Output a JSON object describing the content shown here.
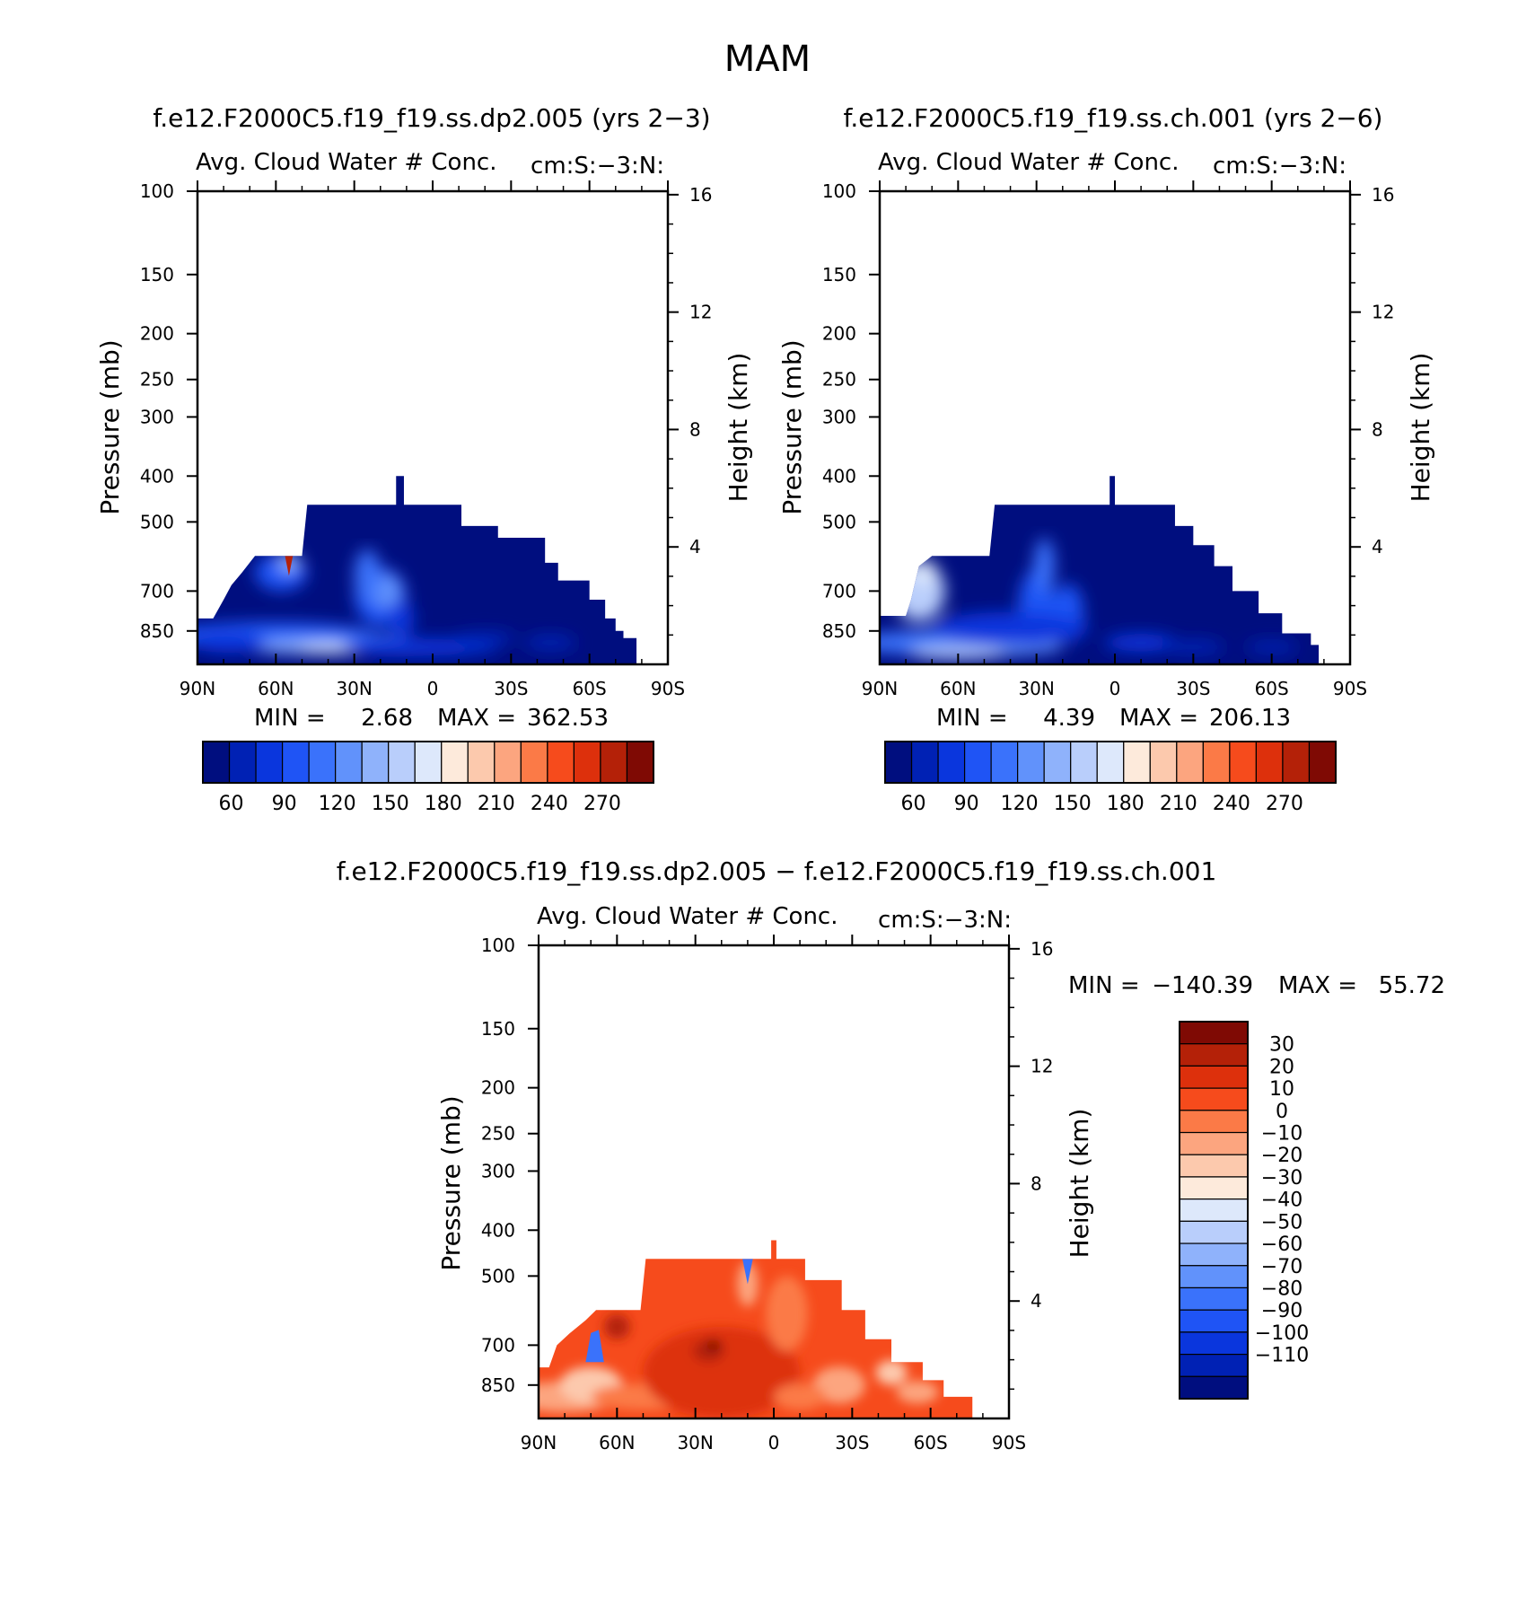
{
  "main_title": "MAM",
  "colors": {
    "abs_scale": [
      "#000e7f",
      "#0021b4",
      "#0a36dd",
      "#1f54f5",
      "#3a72fb",
      "#6192fb",
      "#8fb2fb",
      "#b9cefb",
      "#dde8fb",
      "#fdeadb",
      "#fcc9ad",
      "#fca57f",
      "#fb7a47",
      "#f64b1c",
      "#dd300c",
      "#b42108",
      "#7f0a04"
    ],
    "diff_scale": [
      "#000e7f",
      "#0021b4",
      "#0a36dd",
      "#1f54f5",
      "#3a72fb",
      "#6192fb",
      "#8fb2fb",
      "#b9cefb",
      "#dde8fb",
      "#fdeadb",
      "#fcc9ad",
      "#fca57f",
      "#fb7a47",
      "#f64b1c",
      "#dd300c",
      "#b42108",
      "#7f0a04"
    ],
    "axis": "#000000"
  },
  "chart_data": [
    {
      "type": "heatmap",
      "panel_title": "f.e12.F2000C5.f19_f19.ss.dp2.005 (yrs 2−3)",
      "subtitle": "Avg. Cloud Water # Conc.",
      "region_label": "cm:S:−3:N:",
      "ylabel": "Pressure (mb)",
      "ylabel_right": "Height (km)",
      "x_ticks": [
        "90N",
        "60N",
        "30N",
        "0",
        "30S",
        "60S",
        "90S"
      ],
      "y_ticks": [
        "100",
        "150",
        "200",
        "250",
        "300",
        "400",
        "500",
        "700",
        "850"
      ],
      "y_ticks_right": [
        "16",
        "12",
        "8",
        "4"
      ],
      "stats": {
        "min_label": "MIN =",
        "min": "2.68",
        "max_label": "MAX =",
        "max": "362.53"
      },
      "colorbar_labels": [
        "60",
        "90",
        "120",
        "150",
        "180",
        "210",
        "240",
        "270"
      ],
      "xlim": [
        90,
        -90
      ],
      "ylim": [
        1000,
        100
      ],
      "top_profile": [
        [
          90,
          800
        ],
        [
          84,
          800
        ],
        [
          80,
          730
        ],
        [
          77,
          680
        ],
        [
          73,
          640
        ],
        [
          68,
          590
        ],
        [
          50,
          590
        ],
        [
          48,
          460
        ],
        [
          14,
          460
        ],
        [
          14,
          400
        ],
        [
          11,
          400
        ],
        [
          11,
          460
        ],
        [
          -11,
          460
        ],
        [
          -11,
          510
        ],
        [
          -25,
          510
        ],
        [
          -25,
          540
        ],
        [
          -43,
          540
        ],
        [
          -43,
          610
        ],
        [
          -48,
          610
        ],
        [
          -48,
          665
        ],
        [
          -60,
          665
        ],
        [
          -60,
          730
        ],
        [
          -66,
          730
        ],
        [
          -66,
          800
        ],
        [
          -70,
          800
        ],
        [
          -70,
          850
        ],
        [
          -73,
          850
        ],
        [
          -73,
          880
        ],
        [
          -78,
          880
        ]
      ]
    },
    {
      "type": "heatmap",
      "panel_title": "f.e12.F2000C5.f19_f19.ss.ch.001 (yrs 2−6)",
      "subtitle": "Avg. Cloud Water # Conc.",
      "region_label": "cm:S:−3:N:",
      "ylabel": "Pressure (mb)",
      "ylabel_right": "Height (km)",
      "x_ticks": [
        "90N",
        "60N",
        "30N",
        "0",
        "30S",
        "60S",
        "90S"
      ],
      "y_ticks": [
        "100",
        "150",
        "200",
        "250",
        "300",
        "400",
        "500",
        "700",
        "850"
      ],
      "y_ticks_right": [
        "16",
        "12",
        "8",
        "4"
      ],
      "stats": {
        "min_label": "MIN =",
        "min": "4.39",
        "max_label": "MAX =",
        "max": "206.13"
      },
      "colorbar_labels": [
        "60",
        "90",
        "120",
        "150",
        "180",
        "210",
        "240",
        "270"
      ],
      "xlim": [
        90,
        -90
      ],
      "ylim": [
        1000,
        100
      ],
      "top_profile": [
        [
          90,
          790
        ],
        [
          80,
          790
        ],
        [
          78,
          730
        ],
        [
          75,
          620
        ],
        [
          70,
          590
        ],
        [
          48,
          590
        ],
        [
          46,
          460
        ],
        [
          2,
          460
        ],
        [
          2,
          400
        ],
        [
          0,
          400
        ],
        [
          0,
          460
        ],
        [
          -23,
          460
        ],
        [
          -23,
          510
        ],
        [
          -30,
          510
        ],
        [
          -30,
          560
        ],
        [
          -38,
          560
        ],
        [
          -38,
          620
        ],
        [
          -45,
          620
        ],
        [
          -45,
          700
        ],
        [
          -55,
          700
        ],
        [
          -55,
          780
        ],
        [
          -64,
          780
        ],
        [
          -64,
          860
        ],
        [
          -75,
          860
        ],
        [
          -75,
          910
        ],
        [
          -78,
          910
        ]
      ]
    },
    {
      "type": "heatmap",
      "panel_title": "f.e12.F2000C5.f19_f19.ss.dp2.005 − f.e12.F2000C5.f19_f19.ss.ch.001",
      "subtitle": "Avg. Cloud Water # Conc.",
      "region_label": "cm:S:−3:N:",
      "ylabel": "Pressure (mb)",
      "ylabel_right": "Height (km)",
      "x_ticks": [
        "90N",
        "60N",
        "30N",
        "0",
        "30S",
        "60S",
        "90S"
      ],
      "y_ticks": [
        "100",
        "150",
        "200",
        "250",
        "300",
        "400",
        "500",
        "700",
        "850"
      ],
      "y_ticks_right": [
        "16",
        "12",
        "8",
        "4"
      ],
      "stats": {
        "min_label": "MIN =",
        "min": "−140.39",
        "max_label": "MAX =",
        "max": "55.72"
      },
      "colorbar_labels": [
        "30",
        "20",
        "10",
        "0",
        "−10",
        "−20",
        "−30",
        "−40",
        "−50",
        "−60",
        "−70",
        "−80",
        "−90",
        "−100",
        "−110"
      ],
      "xlim": [
        90,
        -90
      ],
      "ylim": [
        1000,
        100
      ],
      "top_profile": [
        [
          90,
          780
        ],
        [
          86,
          780
        ],
        [
          83,
          700
        ],
        [
          78,
          660
        ],
        [
          72,
          620
        ],
        [
          68,
          590
        ],
        [
          64,
          590
        ],
        [
          51,
          590
        ],
        [
          49,
          460
        ],
        [
          1,
          460
        ],
        [
          1,
          420
        ],
        [
          -1,
          420
        ],
        [
          -1,
          460
        ],
        [
          -12,
          460
        ],
        [
          -12,
          510
        ],
        [
          -26,
          510
        ],
        [
          -26,
          590
        ],
        [
          -35,
          590
        ],
        [
          -35,
          680
        ],
        [
          -45,
          680
        ],
        [
          -45,
          760
        ],
        [
          -57,
          760
        ],
        [
          -57,
          830
        ],
        [
          -65,
          830
        ],
        [
          -65,
          900
        ],
        [
          -76,
          900
        ]
      ]
    }
  ]
}
